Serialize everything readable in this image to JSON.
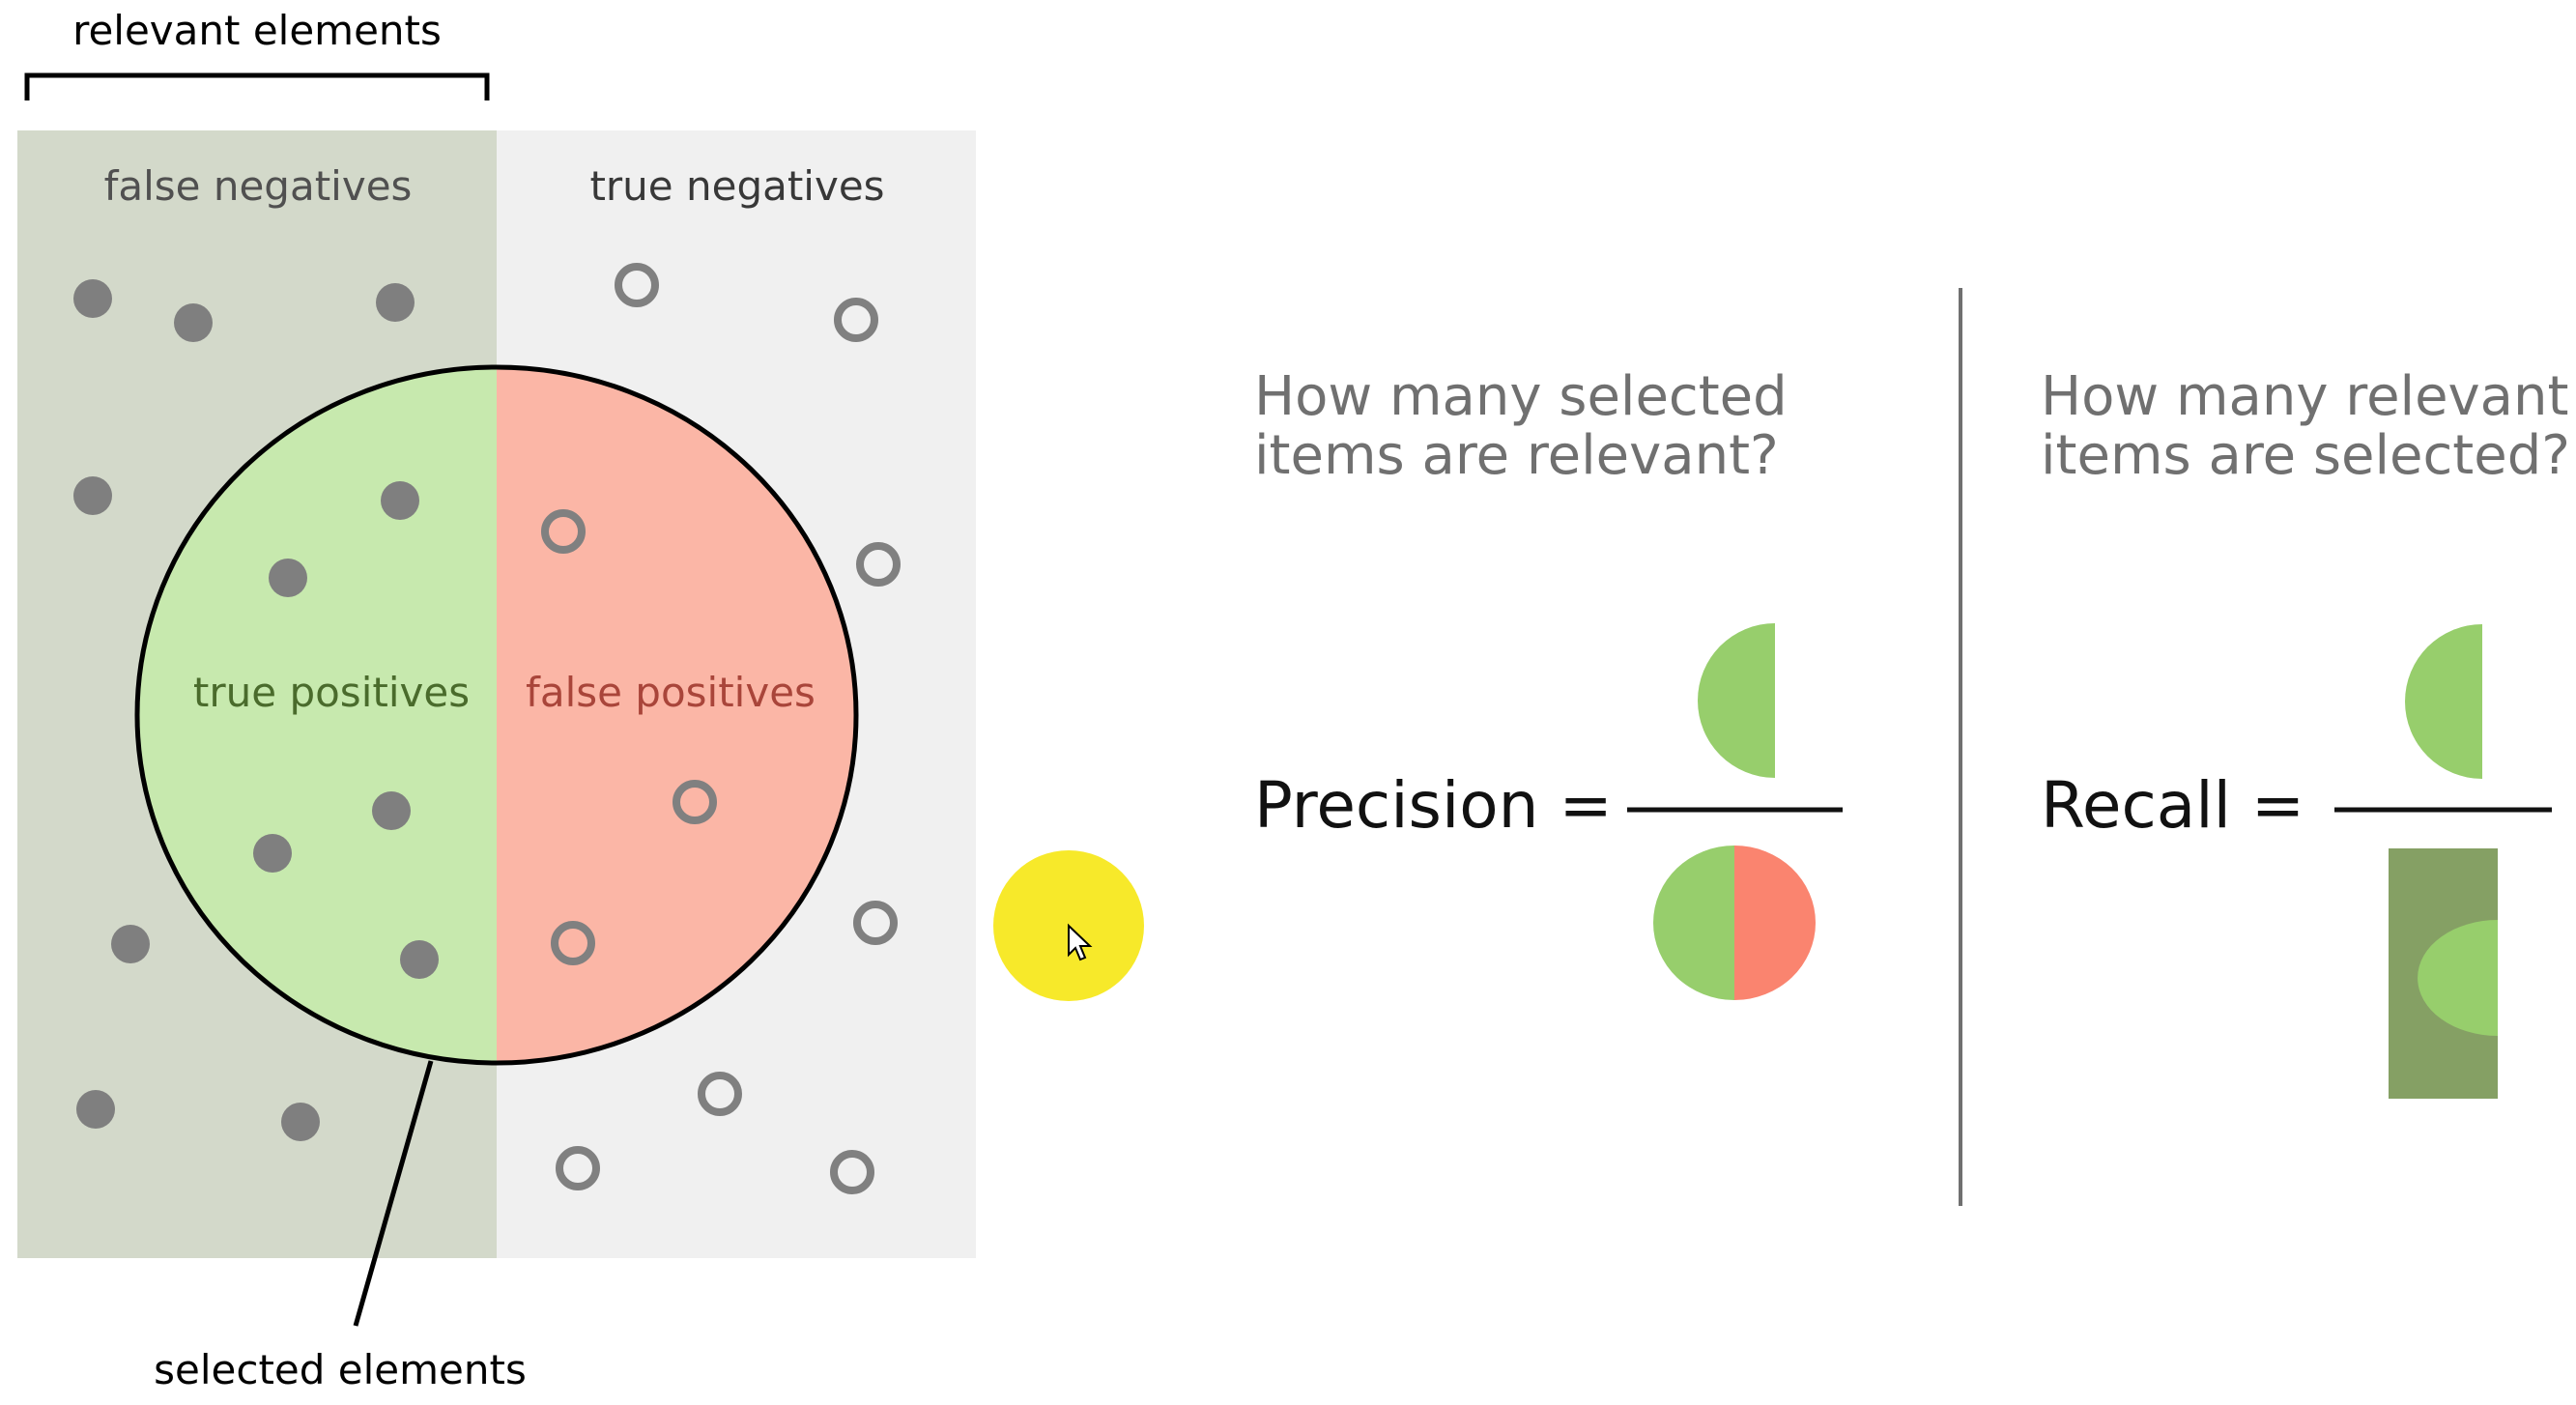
{
  "diagram": {
    "relevant_label": "relevant elements",
    "selected_label": "selected elements",
    "false_negatives": "false negatives",
    "true_negatives": "true negatives",
    "true_positives": "true positives",
    "false_positives": "false positives",
    "colors": {
      "relevant_bg": "#d3d9ca",
      "irrelevant_bg": "#f0f0f0",
      "true_positive_fill": "#c7e9ae",
      "false_positive_fill": "#fbb6a6",
      "dot": "#7f7f7f",
      "tp_text": "#4a6b2c",
      "fp_text": "#a9453a",
      "cursor_highlight": "#f7e92a"
    }
  },
  "precision": {
    "question_line1": "How many selected",
    "question_line2": "items are relevant?",
    "label": "Precision ="
  },
  "recall": {
    "question_line1": "How many relevant",
    "question_line2": "items are selected?",
    "label": "Recall ="
  }
}
